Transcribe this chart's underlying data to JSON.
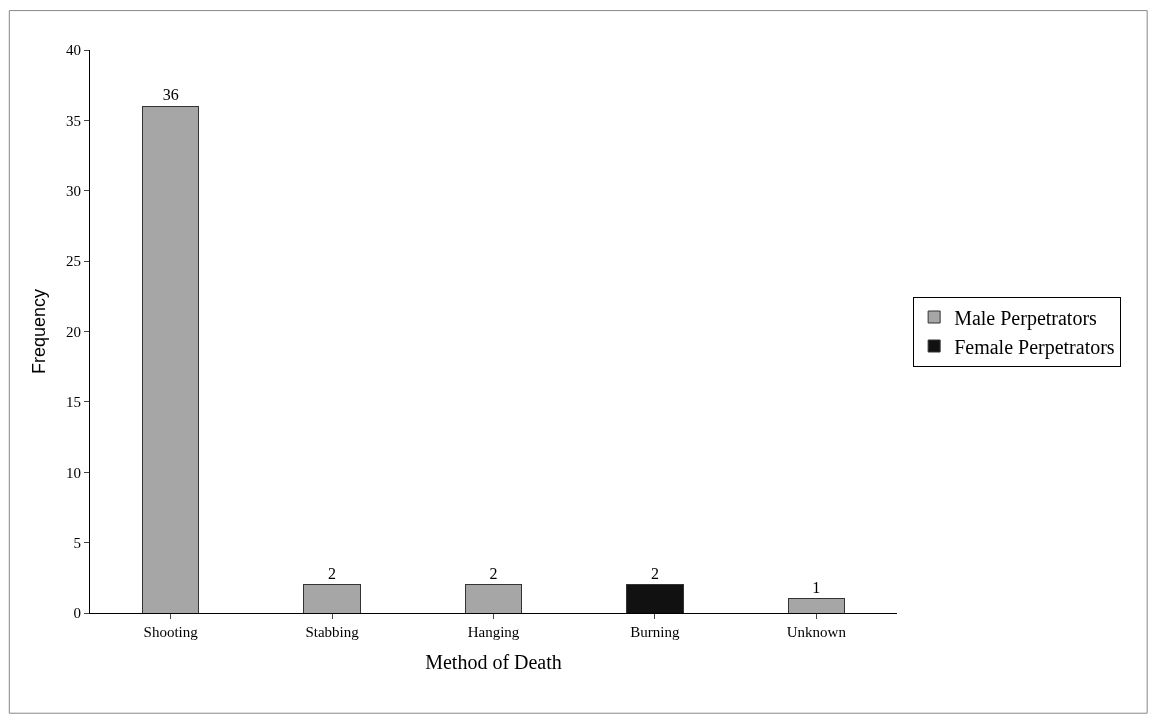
{
  "chart_data": {
    "type": "bar",
    "stacked": true,
    "xlabel": "Method of Death",
    "ylabel": "Frequency",
    "categories": [
      "Shooting",
      "Stabbing",
      "Hanging",
      "Burning",
      "Unknown"
    ],
    "series": [
      {
        "name": "Male Perpetrators",
        "color": "#a6a6a6",
        "values": [
          36,
          2,
          2,
          null,
          1
        ]
      },
      {
        "name": "Female Perpetrators",
        "color": "#111111",
        "values": [
          null,
          null,
          null,
          2,
          null
        ]
      }
    ],
    "ylim": [
      0,
      40
    ],
    "yticks": [
      0,
      5,
      10,
      15,
      20,
      25,
      30,
      35,
      40
    ],
    "data_labels": true,
    "legend": "right"
  }
}
